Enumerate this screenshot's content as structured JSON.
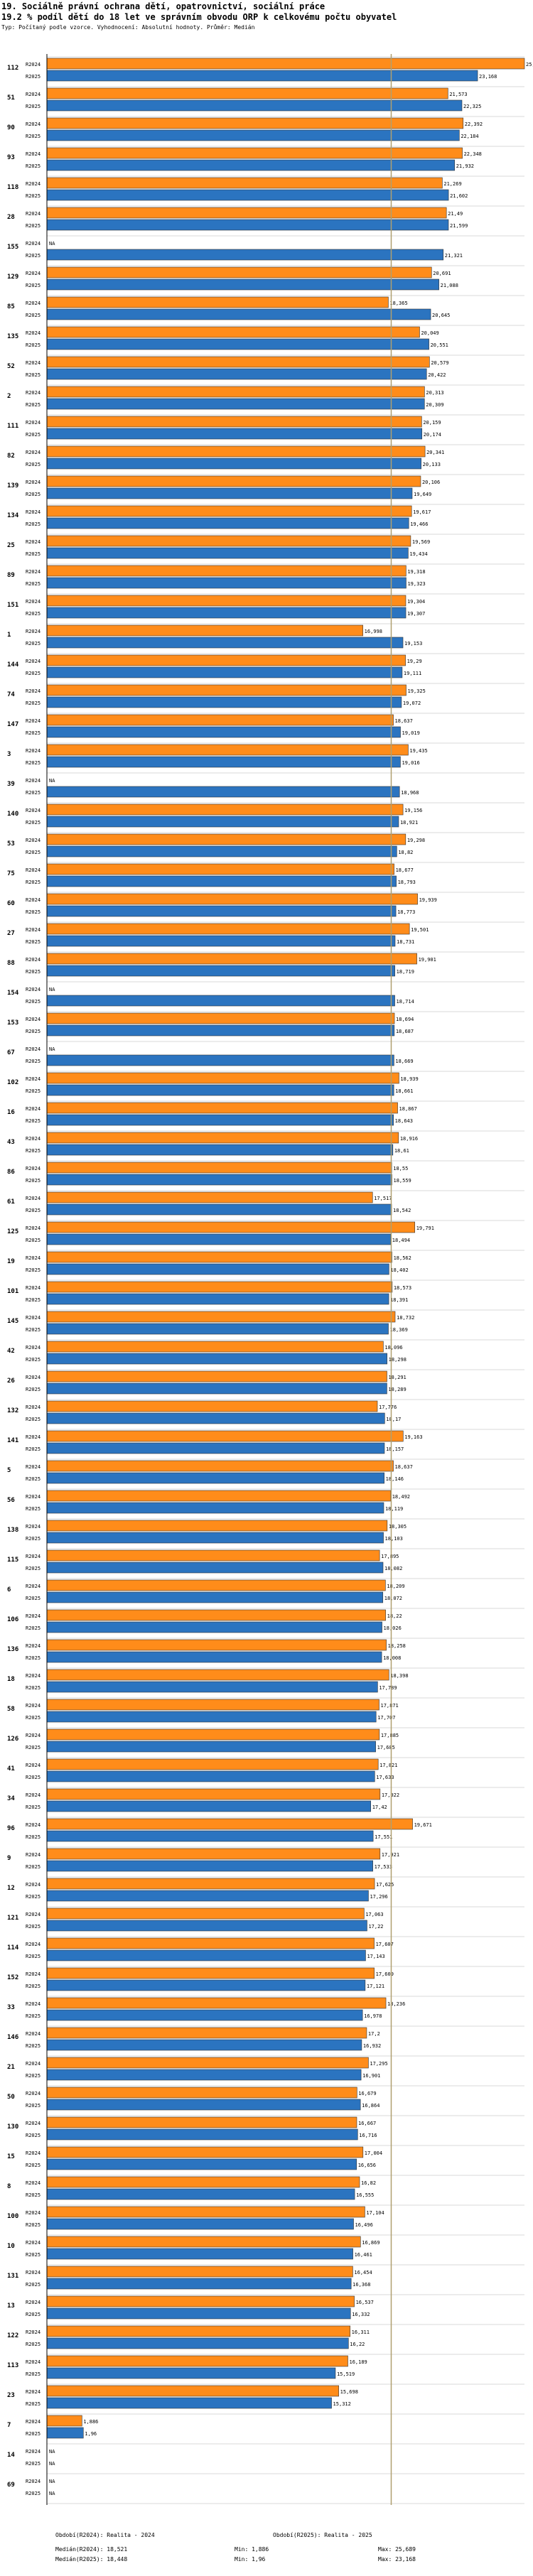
{
  "header": {
    "line1": "19. Sociálně právní ochrana dětí, opatrovnictví, sociální práce",
    "line2": "19.2 % podíl dětí do 18 let ve správním obvodu ORP k celkovému počtu obyvatel",
    "line3": "Typ: Počítaný podle vzorce. Vyhodnocení: Absolutní hodnoty. Průměr: Medián"
  },
  "colors": {
    "r2024": "#ff8c1a",
    "r2025": "#2b74c0",
    "median_line": "#b0a070",
    "axis": "#000000",
    "grid": "#d8d8d8"
  },
  "footer": {
    "period_r2024": "Období(R2024): Realita - 2024",
    "period_r2025": "Období(R2025): Realita - 2025",
    "median_r2024": "Medián(R2024): 18,521",
    "median_r2025": "Medián(R2025): 18,448",
    "min_r2024": "Min: 1,886",
    "min_r2025": "Min: 1,96",
    "max_r2024": "Max: 25,689",
    "max_r2025": "Max: 23,168"
  },
  "chart_data": {
    "type": "bar",
    "orientation": "horizontal",
    "xlim": [
      0,
      25.689
    ],
    "median": 18.521,
    "series_labels": [
      "R2024",
      "R2025"
    ],
    "na_label": "NA",
    "categories": [
      "112",
      "51",
      "90",
      "93",
      "118",
      "28",
      "155",
      "129",
      "85",
      "135",
      "52",
      "2",
      "111",
      "82",
      "139",
      "134",
      "25",
      "89",
      "151",
      "1",
      "144",
      "74",
      "147",
      "3",
      "39",
      "140",
      "53",
      "75",
      "60",
      "27",
      "88",
      "154",
      "153",
      "67",
      "102",
      "16",
      "43",
      "86",
      "61",
      "125",
      "19",
      "101",
      "145",
      "42",
      "26",
      "132",
      "141",
      "5",
      "56",
      "138",
      "115",
      "6",
      "106",
      "136",
      "18",
      "58",
      "126",
      "41",
      "34",
      "96",
      "9",
      "12",
      "121",
      "114",
      "152",
      "33",
      "146",
      "21",
      "50",
      "130",
      "15",
      "8",
      "100",
      "10",
      "131",
      "13",
      "122",
      "113",
      "23",
      "7",
      "14",
      "69"
    ],
    "r2024": [
      25.689,
      21.573,
      22.392,
      22.348,
      21.269,
      21.49,
      null,
      20.691,
      18.365,
      20.049,
      20.579,
      20.313,
      20.159,
      20.341,
      20.106,
      19.617,
      19.569,
      19.318,
      19.304,
      16.998,
      19.29,
      19.325,
      18.637,
      19.435,
      null,
      19.156,
      19.298,
      18.677,
      19.939,
      19.501,
      19.901,
      null,
      18.694,
      null,
      18.939,
      18.867,
      18.916,
      18.55,
      17.517,
      19.791,
      18.562,
      18.573,
      18.732,
      18.096,
      18.291,
      17.776,
      19.163,
      18.637,
      18.492,
      18.305,
      17.895,
      18.209,
      18.22,
      18.258,
      18.398,
      17.871,
      17.885,
      17.821,
      17.922,
      19.671,
      17.921,
      17.625,
      17.063,
      17.607,
      17.609,
      18.236,
      17.2,
      17.295,
      16.679,
      16.667,
      17.004,
      16.82,
      17.104,
      16.869,
      16.454,
      16.537,
      16.311,
      16.189,
      15.698,
      1.886,
      null,
      null
    ],
    "r2025": [
      23.168,
      22.325,
      22.184,
      21.932,
      21.602,
      21.599,
      21.321,
      21.088,
      20.645,
      20.551,
      20.422,
      20.309,
      20.174,
      20.133,
      19.649,
      19.466,
      19.434,
      19.323,
      19.307,
      19.153,
      19.111,
      19.072,
      19.019,
      19.016,
      18.968,
      18.921,
      18.82,
      18.793,
      18.773,
      18.731,
      18.719,
      18.714,
      18.687,
      18.669,
      18.661,
      18.643,
      18.61,
      18.559,
      18.542,
      18.494,
      18.402,
      18.391,
      18.369,
      18.298,
      18.289,
      18.17,
      18.157,
      18.146,
      18.119,
      18.103,
      18.082,
      18.072,
      18.026,
      18.008,
      17.789,
      17.707,
      17.685,
      17.633,
      17.42,
      17.551,
      17.533,
      17.296,
      17.22,
      17.143,
      17.121,
      16.978,
      16.932,
      16.901,
      16.864,
      16.716,
      16.656,
      16.555,
      16.496,
      16.461,
      16.368,
      16.332,
      16.22,
      15.519,
      15.312,
      1.96,
      null,
      null
    ]
  }
}
